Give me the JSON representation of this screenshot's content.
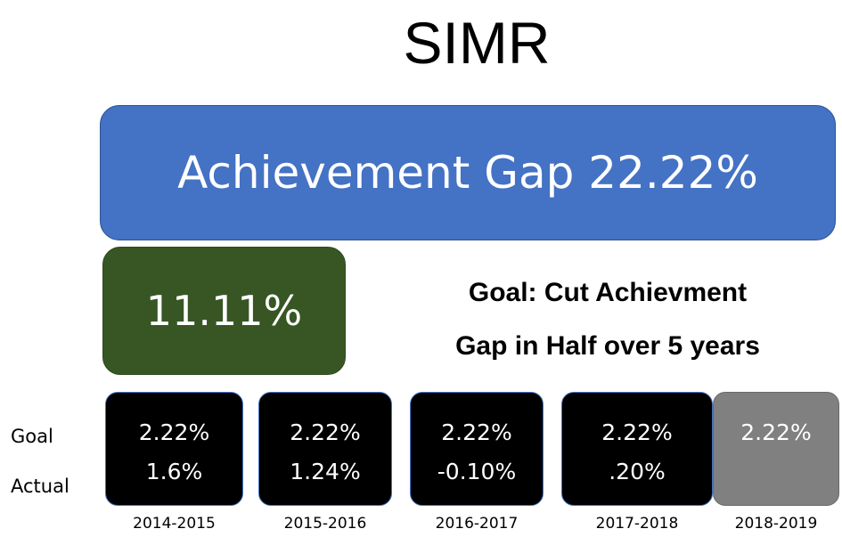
{
  "title": "SIMR",
  "banner": "Achievement Gap 22.22%",
  "target": "11.11%",
  "goal_text": [
    "Goal:  Cut Achievment",
    "Gap in Half over 5 years"
  ],
  "row_labels": [
    "Goal",
    "Actual"
  ],
  "years": [
    {
      "year": "2014-2015",
      "goal": "2.22%",
      "actual": "1.6%"
    },
    {
      "year": "2015-2016",
      "goal": "2.22%",
      "actual": "1.24%"
    },
    {
      "year": "2016-2017",
      "goal": "2.22%",
      "actual": "-0.10%"
    },
    {
      "year": "2017-2018",
      "goal": "2.22%",
      "actual": ".20%"
    },
    {
      "year": "2018-2019",
      "goal": "2.22%"
    }
  ]
}
